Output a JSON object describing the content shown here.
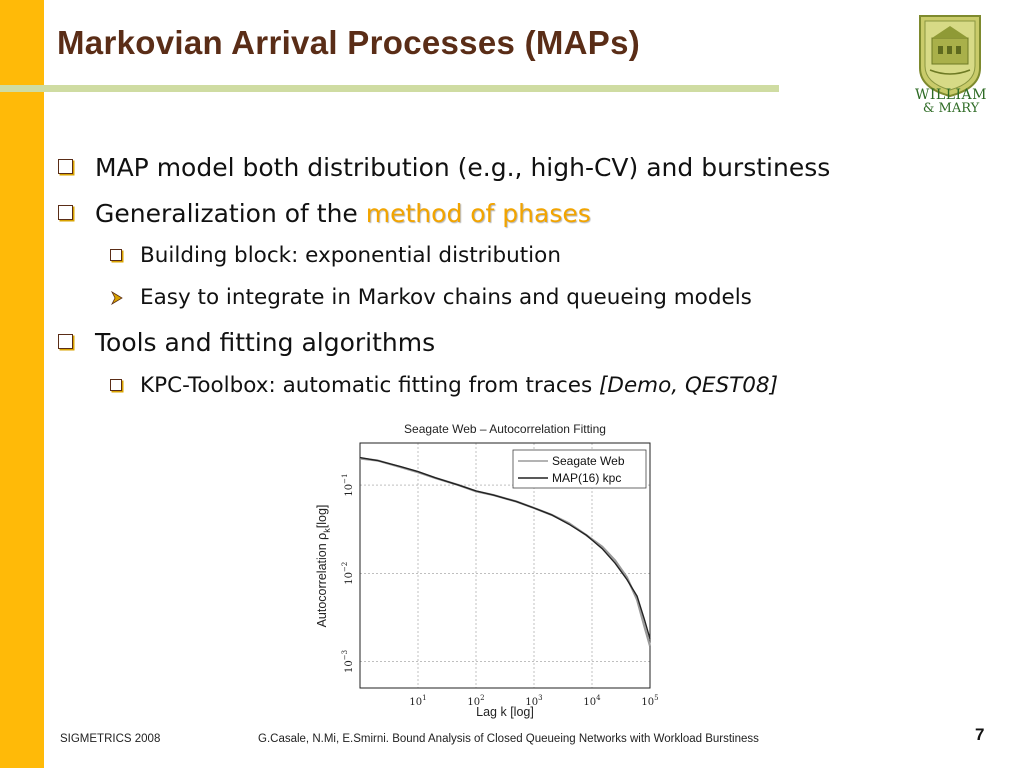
{
  "slide": {
    "title": "Markovian Arrival Processes (MAPs)",
    "accent_color": "#FFBA08",
    "title_color": "#5A2D17",
    "rule_color": "#CFDCA2",
    "highlight_color": "#F2A400"
  },
  "logo": {
    "line1": "WILLIAM",
    "line2": "& MARY",
    "icon": "college-seal-icon"
  },
  "bullets": {
    "b1": "MAP model both distribution (e.g., high-CV) and burstiness",
    "b2_prefix": "Generalization of the ",
    "b2_highlight": "method of phases",
    "b2a": "Building block: exponential distribution",
    "b2b": "Easy to integrate in Markov chains and queueing models",
    "b3": "Tools and fitting algorithms",
    "b3a_prefix": "KPC-Toolbox: automatic fitting from traces ",
    "b3a_citation": "[Demo, QEST08]"
  },
  "chart_data": {
    "type": "line",
    "title": "Seagate Web – Autocorrelation Fitting",
    "xlabel": "Lag k [log]",
    "ylabel": "Autocorrelation",
    "ylabel_symbol": "ρ",
    "ylabel_sub": "k",
    "ylabel_suffix": "[log]",
    "xscale": "log",
    "yscale": "log",
    "xlim": [
      1,
      100000
    ],
    "ylim": [
      0.0005,
      0.3
    ],
    "x_ticks": [
      {
        "value": 10,
        "base": "10",
        "exp": "1"
      },
      {
        "value": 100,
        "base": "10",
        "exp": "2"
      },
      {
        "value": 1000,
        "base": "10",
        "exp": "3"
      },
      {
        "value": 10000,
        "base": "10",
        "exp": "4"
      },
      {
        "value": 100000,
        "base": "10",
        "exp": "5"
      }
    ],
    "y_ticks": [
      {
        "value": 0.1,
        "base": "10",
        "exp": "−1"
      },
      {
        "value": 0.01,
        "base": "10",
        "exp": "−2"
      },
      {
        "value": 0.001,
        "base": "10",
        "exp": "−3"
      }
    ],
    "grid": true,
    "legend_position": "top-right",
    "series": [
      {
        "name": "Seagate Web",
        "color": "#9a9a9a",
        "x": [
          1,
          2,
          5,
          10,
          20,
          50,
          100,
          200,
          500,
          1000,
          2000,
          4000,
          8000,
          15000,
          25000,
          40000,
          60000,
          80000,
          100000
        ],
        "y": [
          0.2,
          0.19,
          0.16,
          0.14,
          0.12,
          0.1,
          0.085,
          0.077,
          0.065,
          0.055,
          0.046,
          0.037,
          0.027,
          0.02,
          0.014,
          0.009,
          0.005,
          0.0025,
          0.0015
        ]
      },
      {
        "name": "MAP(16) kpc",
        "color": "#222222",
        "x": [
          1,
          2,
          5,
          10,
          20,
          50,
          100,
          200,
          500,
          1000,
          2000,
          4000,
          8000,
          15000,
          25000,
          40000,
          60000,
          80000,
          100000
        ],
        "y": [
          0.205,
          0.19,
          0.162,
          0.142,
          0.121,
          0.1,
          0.086,
          0.077,
          0.065,
          0.055,
          0.046,
          0.036,
          0.027,
          0.019,
          0.013,
          0.0085,
          0.0055,
          0.003,
          0.0018
        ]
      }
    ]
  },
  "footer": {
    "left": "SIGMETRICS 2008",
    "middle": "G.Casale, N.Mi, E.Smirni. Bound Analysis of Closed Queueing Networks with Workload Burstiness",
    "page_number": "7"
  }
}
